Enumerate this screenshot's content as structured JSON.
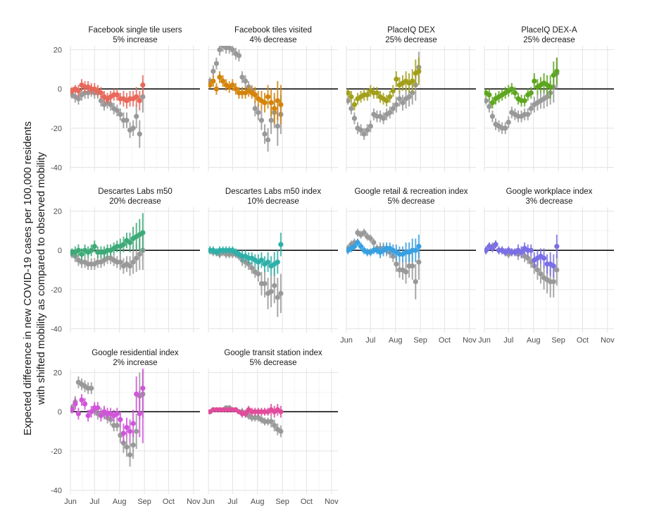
{
  "y_axis_label_line1": "Expected difference in new COVID-19 cases per 100,000 residents",
  "y_axis_label_line2": "with shifted mobility as compared to observed mobility",
  "chart_data": {
    "type": "scatter",
    "subtype": "faceted point-range (dot with error bars), 4 columns",
    "x_tick_labels": [
      "Jun",
      "Jul",
      "Aug",
      "Sep",
      "Oct",
      "Nov"
    ],
    "y_tick_labels": [
      "20",
      "0",
      "-20",
      "-40"
    ],
    "ylim": [
      -42,
      22
    ],
    "x_dates_start": "2020-06-01",
    "x_step_days": 4,
    "reference_line_y": 0,
    "grid": true,
    "observed_series_color": "#999999",
    "panels": [
      {
        "title": "Facebook single tile users",
        "subtitle": "5% increase",
        "color": "#E8685B",
        "shifted": [
          -1,
          0,
          -1,
          2,
          1,
          1,
          0,
          0,
          -1,
          -2,
          -4,
          -5,
          -4,
          -3,
          -3,
          -5,
          -5,
          -6,
          -5,
          -5,
          -4,
          -6,
          2
        ],
        "shifted_err": [
          2,
          2,
          3,
          3,
          3,
          3,
          3,
          3,
          3,
          3,
          3,
          3,
          3,
          3,
          3,
          3,
          4,
          4,
          4,
          4,
          5,
          5,
          5
        ],
        "observed": [
          -3,
          -4,
          -5,
          -3,
          -2,
          -2,
          -1,
          -2,
          -2,
          -6,
          -8,
          -7,
          -8,
          -10,
          -11,
          -13,
          -16,
          -16,
          -21,
          -20,
          -14,
          -23,
          -4
        ],
        "observed_err": [
          2,
          3,
          3,
          3,
          3,
          3,
          3,
          3,
          3,
          3,
          3,
          3,
          3,
          3,
          3,
          3,
          4,
          4,
          4,
          4,
          6,
          7,
          8
        ]
      },
      {
        "title": "Facebook tiles visited",
        "subtitle": "4% decrease",
        "color": "#D4840A",
        "shifted": [
          2,
          4,
          0,
          6,
          4,
          2,
          1,
          2,
          0,
          -2,
          -2,
          -2,
          -1,
          -2,
          -3,
          -5,
          -6,
          -7,
          -4,
          -7,
          -10,
          -6,
          -8
        ],
        "shifted_err": [
          2,
          3,
          3,
          3,
          3,
          3,
          3,
          3,
          3,
          3,
          3,
          3,
          3,
          3,
          4,
          4,
          5,
          5,
          6,
          7,
          8,
          10,
          10
        ],
        "observed": [
          4,
          9,
          13,
          20,
          22,
          21,
          21,
          20,
          18,
          17,
          6,
          4,
          1,
          -1,
          -10,
          -12,
          -16,
          -23,
          -26,
          -16,
          -12,
          -19,
          -13
        ],
        "observed_err": [
          2,
          3,
          3,
          3,
          3,
          3,
          3,
          3,
          3,
          3,
          3,
          3,
          3,
          3,
          4,
          4,
          5,
          5,
          6,
          7,
          8,
          10,
          10
        ]
      },
      {
        "title": "PlaceIQ DEX",
        "subtitle": "25% decrease",
        "color": "#A2A01B",
        "shifted": [
          -2,
          -4,
          -8,
          -5,
          -4,
          -3,
          -3,
          -1,
          -2,
          -2,
          -4,
          -5,
          -6,
          -4,
          -1,
          5,
          2,
          3,
          4,
          3,
          4,
          8,
          9
        ],
        "shifted_err": [
          2,
          3,
          3,
          3,
          3,
          3,
          3,
          3,
          3,
          3,
          3,
          3,
          3,
          3,
          3,
          4,
          4,
          4,
          5,
          5,
          6,
          7,
          7
        ],
        "observed": [
          -6,
          -10,
          -15,
          -20,
          -21,
          -23,
          -21,
          -19,
          -13,
          -14,
          -14,
          -15,
          -13,
          -12,
          -10,
          -8,
          -5,
          -7,
          -5,
          -4,
          -2,
          2,
          11
        ],
        "observed_err": [
          2,
          3,
          3,
          3,
          3,
          3,
          3,
          3,
          3,
          3,
          3,
          3,
          3,
          3,
          3,
          4,
          4,
          4,
          5,
          5,
          6,
          8,
          8
        ]
      },
      {
        "title": "PlaceIQ DEX-A",
        "subtitle": "25% decrease",
        "color": "#5DA61E",
        "shifted": [
          -2,
          -3,
          -7,
          -5,
          -4,
          -3,
          -2,
          -1,
          0,
          -2,
          -5,
          -6,
          -6,
          -3,
          -2,
          4,
          1,
          2,
          3,
          2,
          1,
          7,
          9
        ],
        "shifted_err": [
          2,
          3,
          3,
          3,
          3,
          3,
          3,
          3,
          3,
          3,
          3,
          3,
          3,
          3,
          3,
          4,
          4,
          4,
          5,
          5,
          6,
          7,
          7
        ],
        "observed": [
          -6,
          -9,
          -14,
          -18,
          -19,
          -20,
          -20,
          -17,
          -12,
          -13,
          -14,
          -14,
          -13,
          -13,
          -10,
          -8,
          -7,
          -6,
          -5,
          -4,
          -2,
          1,
          8
        ],
        "observed_err": [
          2,
          3,
          3,
          3,
          3,
          3,
          3,
          3,
          3,
          3,
          3,
          3,
          3,
          3,
          3,
          4,
          4,
          4,
          5,
          5,
          6,
          8,
          8
        ]
      },
      {
        "title": "Descartes Labs m50",
        "subtitle": "20% decrease",
        "color": "#3DAA77",
        "shifted": [
          -1,
          -1,
          0,
          -2,
          0,
          -1,
          0,
          2,
          -1,
          -1,
          -1,
          0,
          0,
          1,
          2,
          2,
          3,
          5,
          4,
          6,
          7,
          8,
          9
        ],
        "shifted_err": [
          2,
          3,
          3,
          3,
          3,
          3,
          3,
          3,
          3,
          3,
          3,
          3,
          3,
          3,
          3,
          4,
          4,
          4,
          5,
          6,
          7,
          8,
          10
        ],
        "observed": [
          -2,
          -3,
          -5,
          -6,
          -6,
          -7,
          -7,
          -7,
          -6,
          -6,
          -5,
          -4,
          -4,
          -5,
          -6,
          -6,
          -8,
          -7,
          -8,
          -6,
          -4,
          -2,
          0
        ],
        "observed_err": [
          2,
          3,
          3,
          3,
          3,
          3,
          3,
          3,
          3,
          3,
          3,
          3,
          3,
          3,
          3,
          4,
          4,
          4,
          5,
          6,
          7,
          8,
          10
        ]
      },
      {
        "title": "Descartes Labs m50 index",
        "subtitle": "10% decrease",
        "color": "#2EB0A8",
        "shifted": [
          0,
          0,
          -1,
          0,
          0,
          0,
          0,
          0,
          -1,
          -2,
          -3,
          -3,
          -4,
          -4,
          -5,
          -6,
          -5,
          -7,
          -6,
          -8,
          -7,
          -6,
          3
        ],
        "shifted_err": [
          2,
          2,
          2,
          2,
          2,
          2,
          2,
          2,
          2,
          2,
          3,
          3,
          3,
          3,
          3,
          4,
          4,
          4,
          5,
          5,
          6,
          6,
          6
        ],
        "observed": [
          0,
          -1,
          -1,
          -2,
          -1,
          -2,
          -2,
          -2,
          -2,
          -3,
          -5,
          -6,
          -7,
          -9,
          -11,
          -12,
          -17,
          -17,
          -22,
          -21,
          -18,
          -24,
          -22
        ],
        "observed_err": [
          2,
          2,
          2,
          2,
          2,
          2,
          2,
          2,
          2,
          2,
          3,
          3,
          3,
          3,
          3,
          4,
          6,
          7,
          8,
          8,
          9,
          10,
          10
        ]
      },
      {
        "title": "Google retail & recreation index",
        "subtitle": "5% decrease",
        "color": "#38A0E2",
        "shifted": [
          0,
          1,
          2,
          4,
          2,
          0,
          -1,
          -1,
          0,
          0,
          -1,
          0,
          1,
          1,
          0,
          -1,
          -2,
          -2,
          -1,
          -1,
          0,
          0,
          2
        ],
        "shifted_err": [
          2,
          2,
          2,
          2,
          2,
          2,
          2,
          2,
          2,
          2,
          3,
          3,
          3,
          3,
          3,
          4,
          4,
          4,
          5,
          5,
          6,
          6,
          6
        ],
        "observed": [
          1,
          3,
          4,
          9,
          8,
          9,
          7,
          6,
          4,
          1,
          1,
          1,
          0,
          -1,
          -3,
          -7,
          -10,
          -10,
          -11,
          -8,
          -8,
          -16,
          -6
        ],
        "observed_err": [
          2,
          2,
          2,
          2,
          2,
          2,
          2,
          2,
          2,
          2,
          3,
          3,
          3,
          3,
          3,
          4,
          4,
          5,
          6,
          6,
          7,
          9,
          9
        ]
      },
      {
        "title": "Google workplace index",
        "subtitle": "3% decrease",
        "color": "#7A6FE6",
        "shifted": [
          0,
          2,
          1,
          3,
          0,
          0,
          -1,
          0,
          -1,
          -1,
          0,
          -1,
          1,
          0,
          0,
          -5,
          -4,
          -3,
          -4,
          -7,
          -7,
          -8,
          2
        ],
        "shifted_err": [
          2,
          2,
          2,
          2,
          2,
          2,
          2,
          2,
          2,
          2,
          3,
          3,
          3,
          3,
          3,
          4,
          4,
          4,
          5,
          5,
          6,
          6,
          6
        ],
        "observed": [
          0,
          2,
          2,
          3,
          0,
          0,
          -1,
          -2,
          -1,
          -1,
          -2,
          -1,
          -3,
          -4,
          -6,
          -8,
          -10,
          -12,
          -14,
          -15,
          -16,
          -16,
          -10
        ],
        "observed_err": [
          2,
          2,
          2,
          2,
          2,
          2,
          2,
          2,
          2,
          2,
          3,
          3,
          3,
          3,
          3,
          4,
          5,
          5,
          6,
          7,
          8,
          8,
          8
        ]
      },
      {
        "title": "Google residential index",
        "subtitle": "2% increase",
        "color": "#D055D9",
        "shifted": [
          1,
          4,
          -1,
          6,
          4,
          -2,
          0,
          2,
          2,
          -2,
          0,
          -1,
          -1,
          -2,
          -1,
          -4,
          -11,
          -8,
          -10,
          -6,
          9,
          -1,
          12
        ],
        "shifted_err": [
          2,
          3,
          3,
          3,
          3,
          3,
          3,
          3,
          3,
          3,
          3,
          3,
          3,
          3,
          3,
          4,
          5,
          5,
          6,
          7,
          9,
          12,
          28
        ],
        "observed": [
          2,
          5,
          15,
          14,
          13,
          12,
          12,
          1,
          -1,
          -1,
          -1,
          -3,
          -4,
          -7,
          -7,
          -12,
          -16,
          -18,
          -22,
          -17,
          -10,
          8,
          9
        ],
        "observed_err": [
          2,
          3,
          3,
          3,
          3,
          3,
          3,
          3,
          3,
          3,
          3,
          3,
          3,
          3,
          3,
          4,
          5,
          5,
          6,
          7,
          9,
          12,
          12
        ]
      },
      {
        "title": "Google transit station index",
        "subtitle": "5% decrease",
        "color": "#E04C9B",
        "shifted": [
          0,
          1,
          1,
          1,
          1,
          1,
          1,
          1,
          1,
          0,
          -1,
          -1,
          1,
          0,
          0,
          0,
          0,
          0,
          0,
          1,
          0,
          1,
          0
        ],
        "shifted_err": [
          1,
          1,
          1,
          1,
          1,
          1,
          1,
          1,
          1,
          1,
          2,
          2,
          2,
          2,
          2,
          2,
          2,
          2,
          2,
          3,
          3,
          3,
          3
        ],
        "observed": [
          0,
          1,
          1,
          1,
          1,
          2,
          2,
          1,
          1,
          0,
          0,
          -1,
          -2,
          -3,
          -3,
          -3,
          -4,
          -5,
          -5,
          -5,
          -7,
          -9,
          -10
        ],
        "observed_err": [
          1,
          1,
          1,
          1,
          1,
          1,
          1,
          1,
          1,
          1,
          2,
          2,
          2,
          2,
          2,
          2,
          2,
          2,
          2,
          3,
          3,
          3,
          3
        ]
      }
    ]
  }
}
